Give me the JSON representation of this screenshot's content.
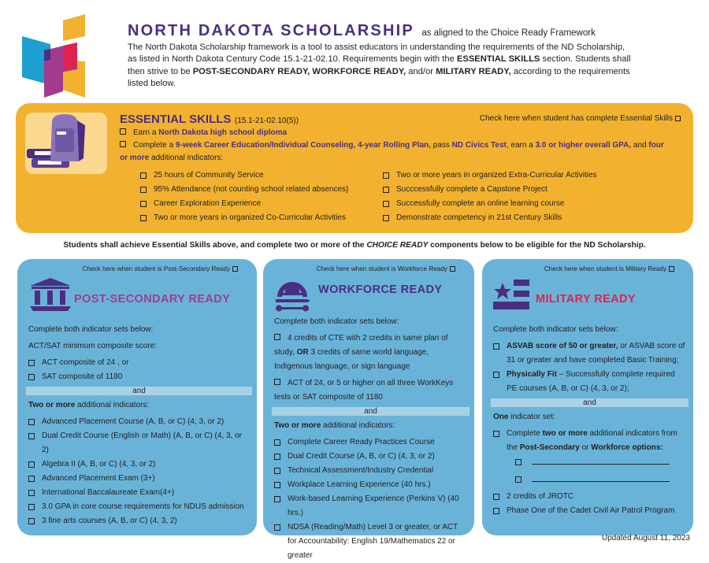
{
  "header": {
    "title": "NORTH DAKOTA SCHOLARSHIP",
    "title_suffix": "as aligned to the Choice Ready Framework",
    "intro": [
      {
        "text": "The North Dakota Scholarship framework is a tool to assist educators in understanding the requirements of the ND Scholarship, as listed in North Dakota Century Code 15.1-21-02.10. Requirements begin with the ",
        "bold": false
      },
      {
        "text": "ESSENTIAL SKILLS",
        "bold": true
      },
      {
        "text": " section. Students shall then strive to be ",
        "bold": false
      },
      {
        "text": "POST-SECONDARY READY, WORKFORCE READY,",
        "bold": true
      },
      {
        "text": " and/or ",
        "bold": false
      },
      {
        "text": "MILITARY READY,",
        "bold": true
      },
      {
        "text": " according to the requirements listed below.",
        "bold": false
      }
    ]
  },
  "essential": {
    "title": "ESSENTIAL SKILLS",
    "code": "(15.1-21-02.10(5))",
    "check_label": "Check here when student has complete Essential Skills",
    "lines": [
      {
        "check": true,
        "parts": [
          {
            "text": "Earn a ",
            "style": ""
          },
          {
            "text": "North Dakota high school diploma",
            "style": "hl"
          }
        ]
      },
      {
        "check": true,
        "parts": [
          {
            "text": "Complete a ",
            "style": ""
          },
          {
            "text": "9-week Career Education/Individual Counseling, 4-year Rolling Plan,",
            "style": "hl"
          },
          {
            "text": " pass ",
            "style": ""
          },
          {
            "text": "ND Civics Test",
            "style": "hl"
          },
          {
            "text": ", earn a ",
            "style": ""
          },
          {
            "text": "3.0 or higher overall GPA,",
            "style": "hl"
          },
          {
            "text": " and ",
            "style": ""
          },
          {
            "text": "four or more",
            "style": "hl"
          },
          {
            "text": " additional indicators:",
            "style": ""
          }
        ]
      }
    ],
    "indicators_left": [
      "25 hours of Community Service",
      "95% Attendance (not counting school related absences)",
      "Career Exploration Experience",
      "Two or more years in organized Co-Curricular Activities"
    ],
    "indicators_right": [
      "Two or more years in organized Extra-Curricular Activities",
      "Succcessfully complete a Capstone Project",
      "Successfully complete an online learning course",
      "Demonstrate competency in 21st Century Skills"
    ]
  },
  "middle": [
    {
      "text": "Students shall achieve Essential Skills above, and complete two or more of the ",
      "style": ""
    },
    {
      "text": "CHOICE READY",
      "style": "i"
    },
    {
      "text": " components below to be eligible for the ND Scholarship.",
      "style": ""
    }
  ],
  "panels": {
    "post": {
      "check_label": "Check here when student is Post-Secondary Ready",
      "title": "POST-SECONDARY READY",
      "color": "#a23b8e",
      "items": [
        {
          "type": "text",
          "parts": [
            {
              "text": "Complete both indicator sets below:",
              "style": ""
            }
          ]
        },
        {
          "type": "text",
          "parts": [
            {
              "text": "ACT/SAT minimum composite score:",
              "style": ""
            }
          ]
        },
        {
          "type": "check",
          "parts": [
            {
              "text": "ACT composite of 24 , or",
              "style": ""
            }
          ]
        },
        {
          "type": "check",
          "parts": [
            {
              "text": "SAT composite of 1180",
              "style": ""
            }
          ]
        },
        {
          "type": "and",
          "parts": [
            {
              "text": "and",
              "style": ""
            }
          ]
        },
        {
          "type": "text",
          "parts": [
            {
              "text": "Two or more",
              "style": "b"
            },
            {
              "text": " additional indicators:",
              "style": ""
            }
          ]
        },
        {
          "type": "check",
          "parts": [
            {
              "text": "Advanced Placement Course (A, B, or C) (4, 3, or 2)",
              "style": ""
            }
          ]
        },
        {
          "type": "check",
          "parts": [
            {
              "text": "Dual Credit Course (English or Math) (A, B, or C) (4, 3, or 2)",
              "style": ""
            }
          ]
        },
        {
          "type": "check",
          "parts": [
            {
              "text": "Algebra II (A, B, or C) (4, 3, or 2)",
              "style": ""
            }
          ]
        },
        {
          "type": "check",
          "parts": [
            {
              "text": "Advanced Placement Exam (3+)",
              "style": ""
            }
          ]
        },
        {
          "type": "check",
          "parts": [
            {
              "text": "International Baccalaureate Exam(4+)",
              "style": ""
            }
          ]
        },
        {
          "type": "check",
          "parts": [
            {
              "text": "3.0 GPA in core course requirements for NDUS admission",
              "style": ""
            }
          ]
        },
        {
          "type": "check",
          "parts": [
            {
              "text": "3 fine arts courses (A, B, or C) (4, 3, 2)",
              "style": ""
            }
          ]
        }
      ]
    },
    "workforce": {
      "check_label": "Check here when student is Workforce Ready",
      "title": "WORKFORCE READY",
      "color": "#4b2e83",
      "items": [
        {
          "type": "text",
          "parts": [
            {
              "text": "Complete both indicator sets below:",
              "style": ""
            }
          ]
        },
        {
          "type": "inline",
          "parts": [
            {
              "text": "4 credits of CTE with 2 credits in same plan of study, ",
              "style": ""
            },
            {
              "text": "OR",
              "style": "b"
            },
            {
              "text": " 3 credits of same world language, Indigenous language, or sign language",
              "style": ""
            }
          ]
        },
        {
          "type": "inline",
          "parts": [
            {
              "text": "ACT of 24, or 5 or higher on all three WorkKeys tests or SAT composite of 1180",
              "style": ""
            }
          ]
        },
        {
          "type": "and",
          "parts": [
            {
              "text": "and",
              "style": ""
            }
          ]
        },
        {
          "type": "text",
          "parts": [
            {
              "text": "Two or more",
              "style": "b"
            },
            {
              "text": " additional indicators:",
              "style": ""
            }
          ]
        },
        {
          "type": "check",
          "parts": [
            {
              "text": "Complete Career Ready Practices Course",
              "style": ""
            }
          ]
        },
        {
          "type": "check",
          "parts": [
            {
              "text": "Dual Credit Course (A, B, or C) (4, 3, or 2)",
              "style": ""
            }
          ]
        },
        {
          "type": "check",
          "parts": [
            {
              "text": "Technical Assessment/Industry Credential",
              "style": ""
            }
          ]
        },
        {
          "type": "check",
          "parts": [
            {
              "text": "Workplace Learning Experience (40 hrs.)",
              "style": ""
            }
          ]
        },
        {
          "type": "check",
          "parts": [
            {
              "text": "Work-based Learning Experience (Perkins V) (40 hrs.)",
              "style": ""
            }
          ]
        },
        {
          "type": "check",
          "parts": [
            {
              "text": "NDSA (Reading/Math) Level 3 or greater, or ACT for Accountability: English 19/Mathematics 22 or greater",
              "style": ""
            }
          ]
        }
      ]
    },
    "military": {
      "check_label": "Check here when student is Military Ready",
      "title": "MILITARY READY",
      "color": "#e0234e",
      "items": [
        {
          "type": "text",
          "parts": [
            {
              "text": "Complete both indicator sets below:",
              "style": ""
            }
          ]
        },
        {
          "type": "check",
          "parts": [
            {
              "text": "ASVAB score of 50 or greater,",
              "style": "b"
            },
            {
              "text": " or ASVAB score of 31 or greater and have completed Basic Training;",
              "style": ""
            }
          ]
        },
        {
          "type": "check",
          "parts": [
            {
              "text": "Physically Fit",
              "style": "b"
            },
            {
              "text": " – Successfully complete required PE courses (A, B, or C) (4, 3, or 2);",
              "style": ""
            }
          ]
        },
        {
          "type": "and",
          "parts": [
            {
              "text": "and",
              "style": ""
            }
          ]
        },
        {
          "type": "text",
          "parts": [
            {
              "text": "One",
              "style": "b"
            },
            {
              "text": " indicator set:",
              "style": ""
            }
          ]
        },
        {
          "type": "check",
          "parts": [
            {
              "text": "Complete ",
              "style": ""
            },
            {
              "text": "two or more",
              "style": "b"
            },
            {
              "text": " additional indicators from the ",
              "style": ""
            },
            {
              "text": "Post-Secondary",
              "style": "b"
            },
            {
              "text": " or ",
              "style": ""
            },
            {
              "text": "Workforce options:",
              "style": "b"
            }
          ]
        },
        {
          "type": "blank",
          "parts": []
        },
        {
          "type": "blank",
          "parts": []
        },
        {
          "type": "check",
          "parts": [
            {
              "text": "2 credits of JROTC",
              "style": ""
            }
          ]
        },
        {
          "type": "check",
          "parts": [
            {
              "text": "Phase One of the Cadet Civil Air Patrol Program",
              "style": ""
            }
          ]
        }
      ]
    }
  },
  "footer": {
    "updated": "Updated August 11, 2023"
  },
  "colors": {
    "purple": "#4b2e83",
    "orange": "#f2b22f",
    "blue": "#6ab3d8",
    "and_bar": "#a9d1e6",
    "magenta": "#a23b8e",
    "red": "#e0234e"
  }
}
